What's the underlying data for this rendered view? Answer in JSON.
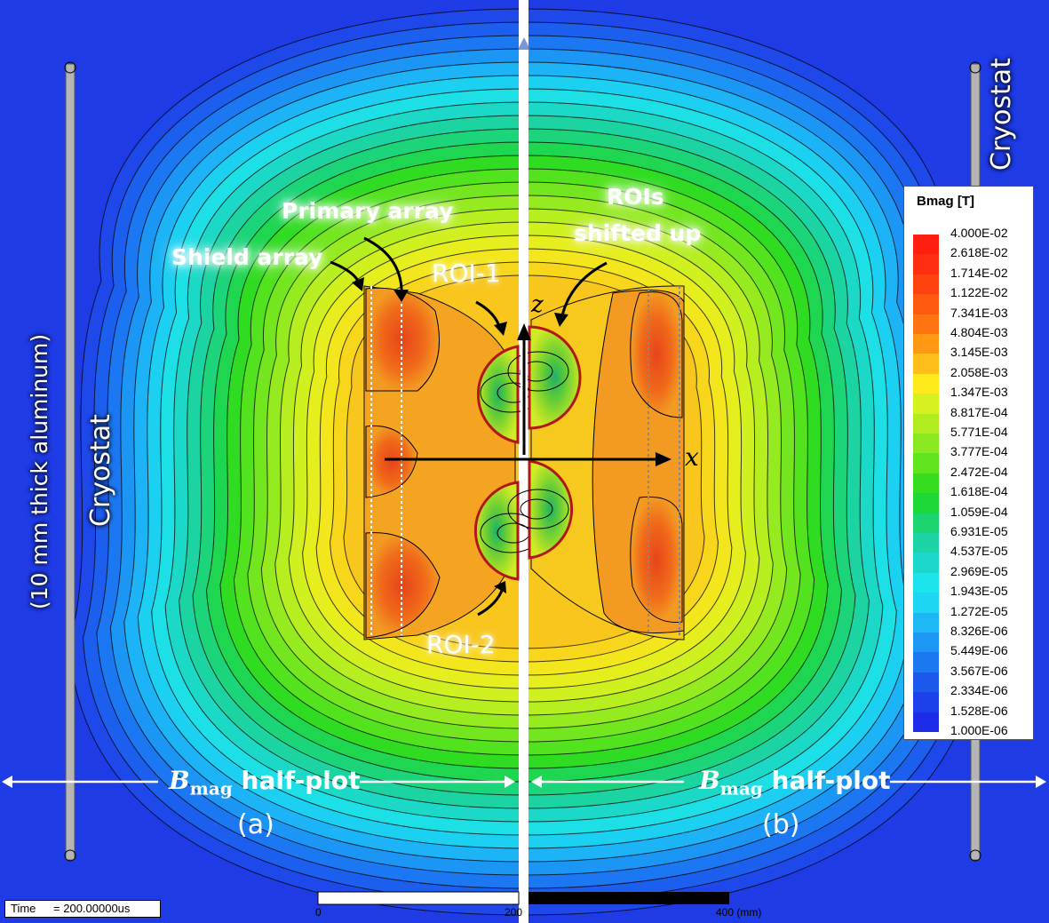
{
  "labels": {
    "cryostat_left": "Cryostat",
    "aluminum_note": "(10 mm thick aluminum)",
    "cryostat_right": "Cryostat",
    "primary_array": "Primary array",
    "shield_array": "Shield array",
    "roi_1": "ROI-1",
    "roi_2": "ROI-2",
    "rois_shifted_line1": "ROIs",
    "rois_shifted_line2": "shifted up",
    "axis_z": "z",
    "axis_x": "x",
    "half_plot_main_left": "B",
    "half_plot_sub_left": "mag",
    "half_plot_tail_left": "half-plot",
    "panel_a": "(a)",
    "half_plot_main_right": "B",
    "half_plot_sub_right": "mag",
    "half_plot_tail_right": "half-plot",
    "panel_b": "(b)"
  },
  "legend": {
    "title": "Bmag [T]",
    "values": [
      "4.000E-02",
      "2.618E-02",
      "1.714E-02",
      "1.122E-02",
      "7.341E-03",
      "4.804E-03",
      "3.145E-03",
      "2.058E-03",
      "1.347E-03",
      "8.817E-04",
      "5.771E-04",
      "3.777E-04",
      "2.472E-04",
      "1.618E-04",
      "1.059E-04",
      "6.931E-05",
      "4.537E-05",
      "2.969E-05",
      "1.943E-05",
      "1.272E-05",
      "8.326E-06",
      "5.449E-06",
      "3.567E-06",
      "2.334E-06",
      "1.528E-06",
      "1.000E-06"
    ],
    "colors": [
      "#ff1e10",
      "#ff2e10",
      "#ff4310",
      "#ff5a10",
      "#ff7412",
      "#ff9914",
      "#ffbf18",
      "#ffea1c",
      "#d6f020",
      "#b0ec20",
      "#8ae820",
      "#5fe41e",
      "#36dc20",
      "#1ed838",
      "#1cd470",
      "#1cd4a6",
      "#1cd8cc",
      "#1ce4ec",
      "#1cd6f4",
      "#1cb8f6",
      "#1c98f4",
      "#1c78f0",
      "#1c58ec",
      "#1c40ea",
      "#1c2ce8"
    ]
  },
  "time_box": {
    "label": "Time",
    "value": "= 200.00000us"
  },
  "scale_bar": {
    "ticks": [
      "0",
      "200",
      "400 (mm)"
    ]
  }
}
